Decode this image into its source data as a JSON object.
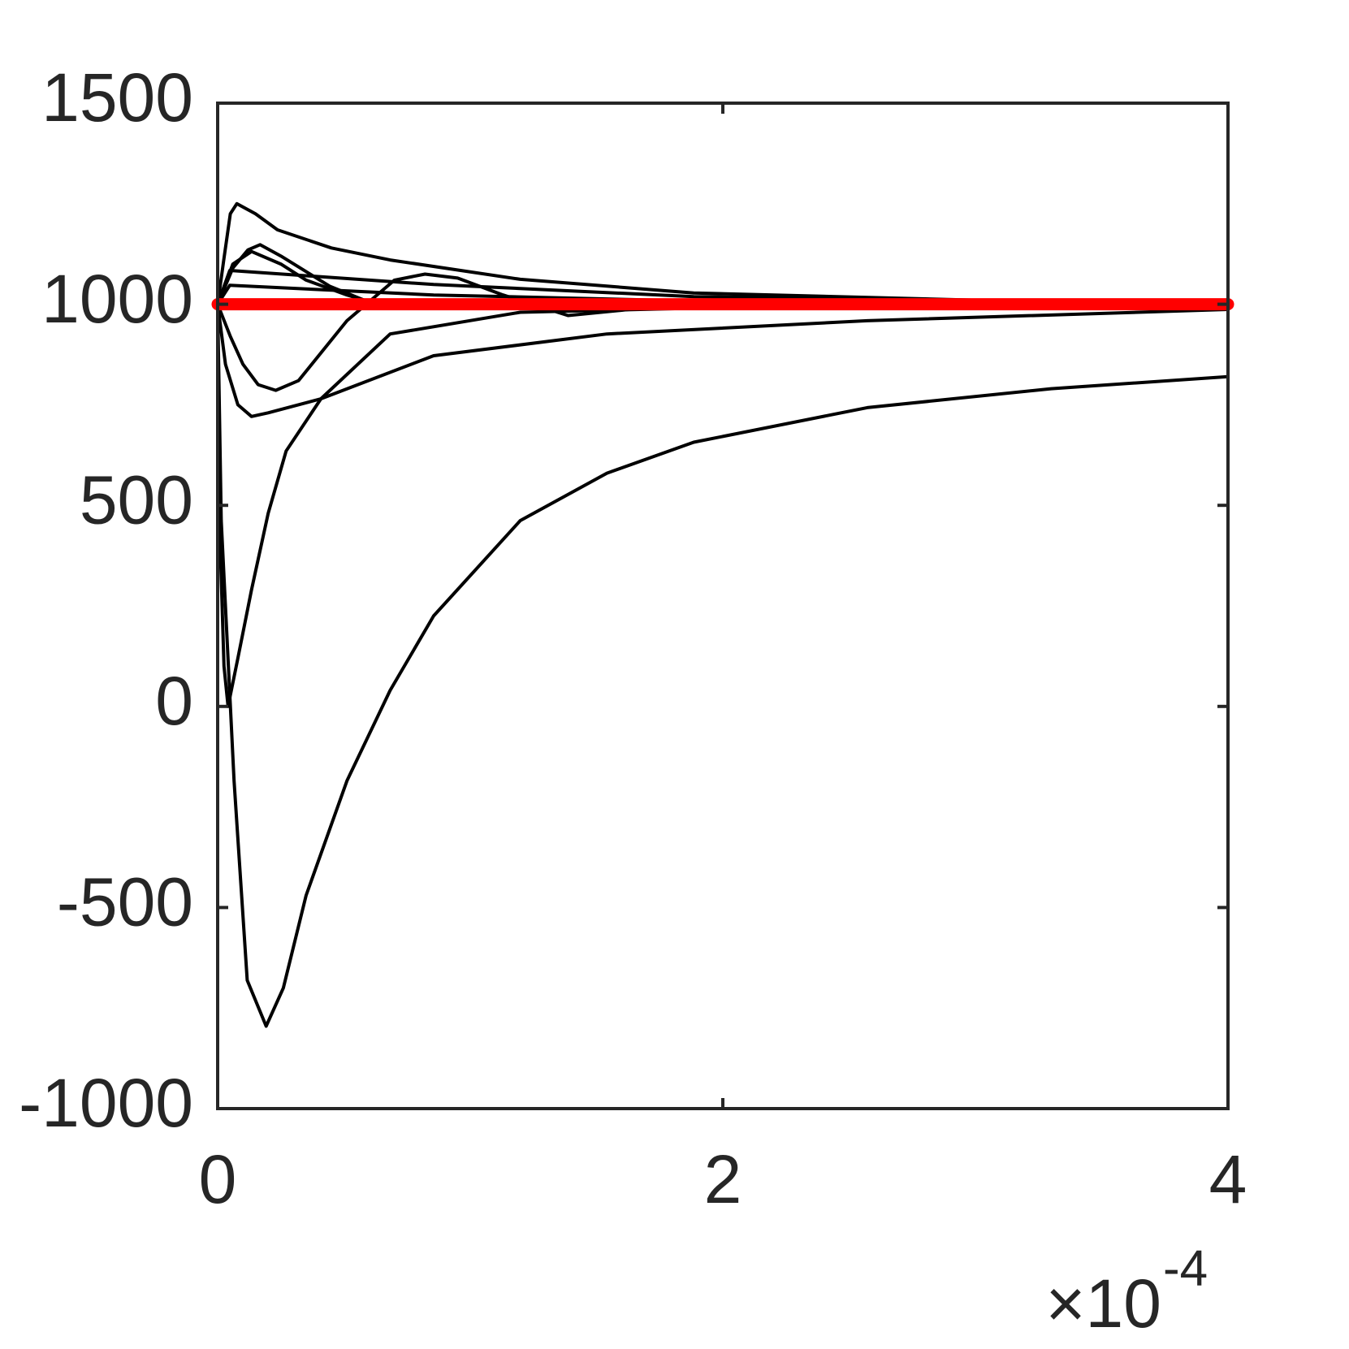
{
  "chart_data": {
    "type": "line",
    "x_multiplier": "×10",
    "x_multiplier_exponent": "-4",
    "xlim": [
      0,
      4
    ],
    "xticks": [
      0,
      2,
      4
    ],
    "ylim": [
      -1000,
      1500
    ],
    "yticks": [
      -1000,
      -500,
      0,
      500,
      1000,
      1500
    ],
    "series": [
      {
        "color": "#000000",
        "x": [
          0,
          0.014,
          0.065,
          0.117,
          0.192,
          0.26,
          0.35,
          0.512,
          0.683,
          0.855,
          1.198,
          1.541,
          1.885,
          2.572,
          3.3,
          4
        ],
        "values": [
          1000,
          462,
          -185,
          -681,
          -795,
          -700,
          -470,
          -185,
          40,
          225,
          462,
          580,
          657,
          743,
          790,
          820
        ]
      },
      {
        "color": "#000000",
        "x": [
          0,
          0.007,
          0.025,
          0.041,
          0.08,
          0.134,
          0.2,
          0.271,
          0.409,
          0.683,
          1.198,
          2,
          4
        ],
        "values": [
          1000,
          462,
          100,
          0,
          120,
          290,
          480,
          635,
          765,
          926,
          980,
          992,
          997
        ]
      },
      {
        "color": "#000000",
        "x": [
          0,
          0.031,
          0.08,
          0.134,
          0.2,
          0.409,
          0.855,
          1.541,
          2.572,
          4
        ],
        "values": [
          1000,
          851,
          750,
          721,
          730,
          765,
          872,
          926,
          959,
          987
        ]
      },
      {
        "color": "#000000",
        "x": [
          0,
          0.05,
          0.1,
          0.16,
          0.23,
          0.32,
          0.512,
          0.7,
          0.821,
          0.95,
          1.13,
          1.387,
          1.6,
          1.885,
          2.6,
          4
        ],
        "values": [
          1000,
          920,
          851,
          800,
          786,
          810,
          959,
          1060,
          1075,
          1065,
          1023,
          972,
          985,
          1006,
          997,
          997
        ]
      },
      {
        "color": "#000000",
        "x": [
          0,
          0.024,
          0.05,
          0.076,
          0.15,
          0.237,
          0.45,
          0.683,
          1.198,
          1.885,
          3,
          4
        ],
        "values": [
          1000,
          1110,
          1225,
          1250,
          1225,
          1185,
          1140,
          1110,
          1062,
          1028,
          1010,
          1002
        ]
      },
      {
        "color": "#000000",
        "x": [
          0,
          0.06,
          0.12,
          0.168,
          0.25,
          0.443,
          0.6,
          0.752,
          1.2,
          4
        ],
        "values": [
          1000,
          1090,
          1135,
          1148,
          1120,
          1045,
          1005,
          989,
          997,
          997
        ]
      },
      {
        "color": "#000000",
        "x": [
          0,
          0.06,
          0.134,
          0.25,
          0.35,
          0.512,
          0.65,
          4
        ],
        "values": [
          1000,
          1100,
          1131,
          1100,
          1060,
          1023,
          997,
          997
        ]
      },
      {
        "color": "#000000",
        "x": [
          0,
          0.048,
          0.855,
          1.885,
          4
        ],
        "values": [
          1000,
          1084,
          1049,
          1019,
          1002
        ]
      },
      {
        "color": "#000000",
        "x": [
          0,
          0.048,
          0.855,
          1.885,
          4
        ],
        "values": [
          1000,
          1047,
          1023,
          1008,
          1000
        ]
      },
      {
        "color": "#ff0000",
        "width": "thick",
        "x": [
          0,
          4
        ],
        "values": [
          1000,
          1000
        ]
      }
    ]
  }
}
